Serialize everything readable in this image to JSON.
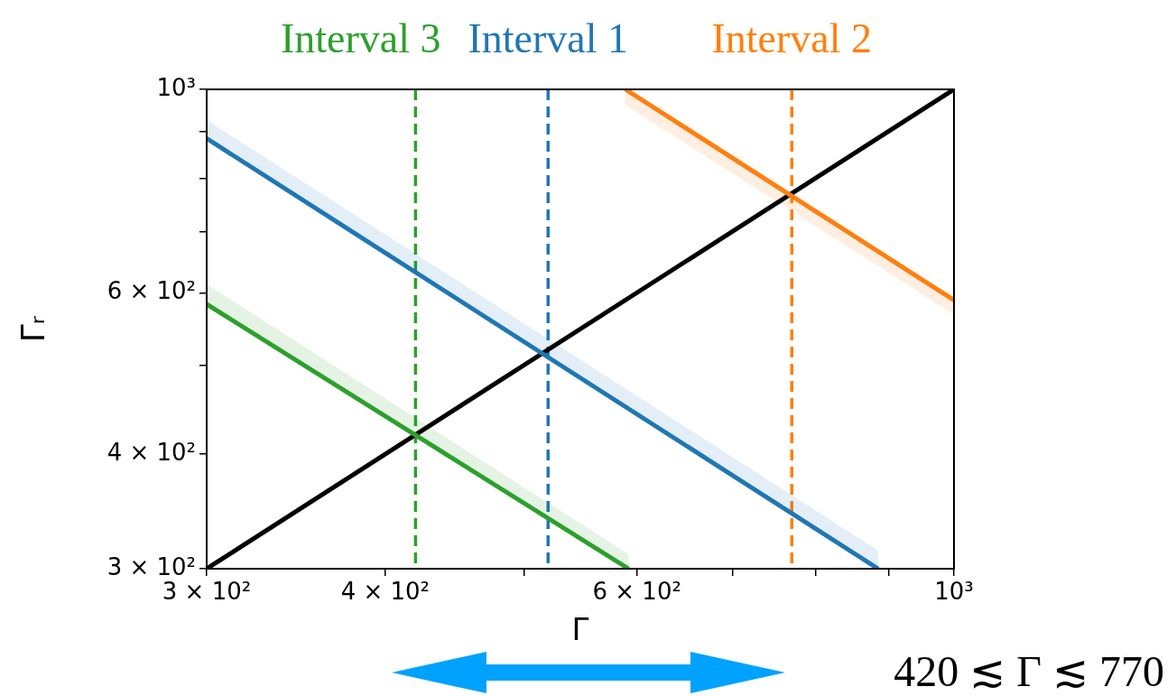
{
  "chart_data": {
    "type": "line",
    "xlabel": "Γ",
    "ylabel": "Γᵣ",
    "log": "xy",
    "legend": false,
    "xlim": [
      300,
      1000
    ],
    "ylim": [
      300,
      1000
    ],
    "xticks": [
      {
        "value": 300,
        "label": "3 × 10²"
      },
      {
        "value": 400,
        "label": "4 × 10²"
      },
      {
        "value": 500,
        "label": null
      },
      {
        "value": 600,
        "label": "6 × 10²"
      },
      {
        "value": 700,
        "label": null
      },
      {
        "value": 800,
        "label": null
      },
      {
        "value": 900,
        "label": null
      },
      {
        "value": 1000,
        "label": "10³"
      }
    ],
    "yticks": [
      {
        "value": 300,
        "label": "3 × 10²"
      },
      {
        "value": 400,
        "label": "4 × 10²"
      },
      {
        "value": 500,
        "label": null
      },
      {
        "value": 600,
        "label": "6 × 10²"
      },
      {
        "value": 700,
        "label": null
      },
      {
        "value": 800,
        "label": null
      },
      {
        "value": 900,
        "label": null
      },
      {
        "value": 1000,
        "label": "10³"
      }
    ],
    "series": [
      {
        "color": "#1f77b4",
        "x": [
          300,
          885
        ],
        "values": [
          884,
          300
        ],
        "lower": [
          884,
          300
        ],
        "upper": [
          926,
          314
        ]
      },
      {
        "color": "#2ca02c",
        "x": [
          300,
          592
        ],
        "values": [
          583,
          300
        ],
        "lower": [
          583,
          300
        ],
        "upper": [
          613,
          311
        ]
      },
      {
        "color": "#ff7f0e",
        "x": [
          589,
          1000
        ],
        "values": [
          1000,
          589
        ],
        "lower": [
          961,
          568
        ],
        "upper": [
          1000,
          589
        ]
      },
      {
        "color": "#000000",
        "x": [
          300,
          1000
        ],
        "values": [
          300,
          1000
        ]
      }
    ],
    "ref_lines": [
      {
        "axis": "x",
        "value": 520,
        "label": "Interval 1",
        "color": "#1f77b4",
        "line_style": "dashed"
      },
      {
        "axis": "x",
        "value": 770,
        "label": "Interval 2",
        "color": "#ff7f0e",
        "line_style": "dashed"
      },
      {
        "axis": "x",
        "value": 420,
        "label": "Interval 3",
        "color": "#2ca02c",
        "line_style": "dashed"
      }
    ],
    "annotations": [
      "420 ≲ Γ ≲ 770"
    ]
  }
}
